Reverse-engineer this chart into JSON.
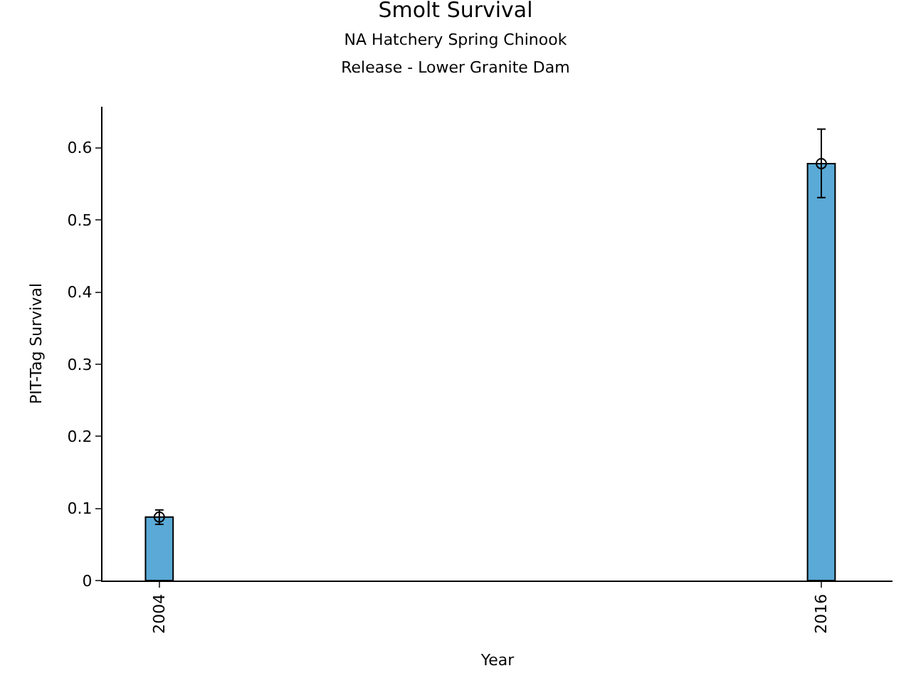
{
  "chart_data": {
    "type": "bar",
    "title": "Smolt Survival",
    "subtitle": "NA Hatchery Spring Chinook\nRelease - Lower Granite Dam",
    "xlabel": "Year",
    "ylabel": "PIT-Tag Survival",
    "x": [
      2004,
      2016
    ],
    "series": [
      {
        "color": "#5aa9d6",
        "values": [
          0.088,
          0.578
        ]
      },
      {
        "type": "scatter",
        "color": "#000000",
        "values": [
          0.088,
          0.578
        ],
        "errors": [
          [
            0.078,
            0.098
          ],
          [
            0.531,
            0.626
          ]
        ]
      }
    ],
    "xlim": [
      2002.97,
      2017.29
    ],
    "xticks": [
      2004,
      2016
    ],
    "ylim": [
      0,
      0.657
    ],
    "yticks": [
      0,
      0.1,
      0.2,
      0.3,
      0.4,
      0.5,
      0.6
    ],
    "marker": "circle"
  }
}
